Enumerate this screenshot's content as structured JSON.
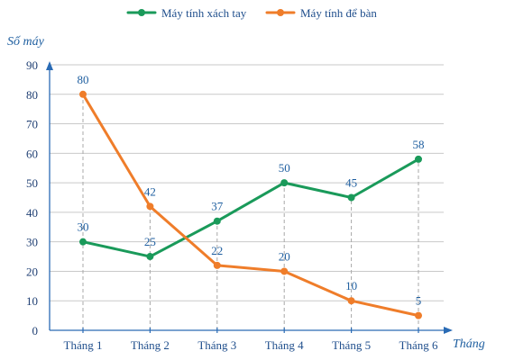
{
  "chart_data": {
    "type": "line",
    "categories": [
      "Tháng 1",
      "Tháng 2",
      "Tháng 3",
      "Tháng 4",
      "Tháng 5",
      "Tháng 6"
    ],
    "series": [
      {
        "name": "Máy tính xách tay",
        "color": "#1a9a5a",
        "values": [
          30,
          25,
          37,
          50,
          45,
          58
        ]
      },
      {
        "name": "Máy tính để bàn",
        "color": "#ef7d2a",
        "values": [
          80,
          42,
          22,
          20,
          10,
          5
        ]
      }
    ],
    "xlabel": "Tháng",
    "ylabel": "Số máy",
    "ylim": [
      0,
      90
    ],
    "yticks": [
      0,
      10,
      20,
      30,
      40,
      50,
      60,
      70,
      80,
      90
    ],
    "grid": "horizontal",
    "legend": "top-center",
    "data_labels": true
  },
  "colors": {
    "axis": "#2a6bb5",
    "grid": "#c9c9c9",
    "guide": "#a8a8a8"
  }
}
